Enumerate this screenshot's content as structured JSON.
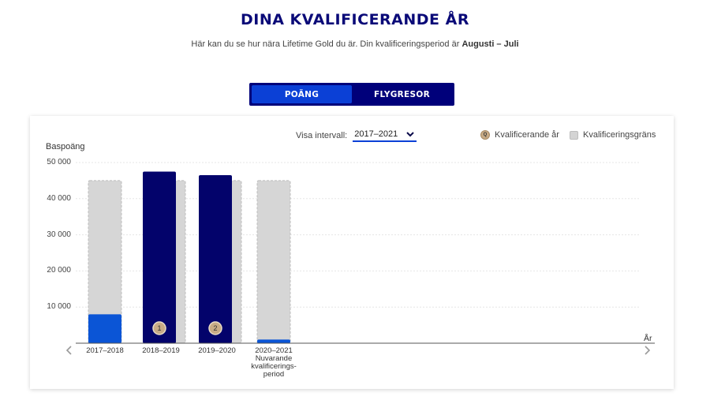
{
  "header": {
    "title": "DINA KVALIFICERANDE ÅR",
    "subtitle_prefix": "Här kan du se hur nära Lifetime Gold du är. Din kvalificeringsperiod är ",
    "subtitle_period": "Augusti – Juli"
  },
  "toggle": {
    "tabs": [
      {
        "label": "POÄNG",
        "active": true
      },
      {
        "label": "FLYGRESOR",
        "active": false
      }
    ]
  },
  "controls": {
    "interval_label": "Visa intervall:",
    "interval_value": "2017–2021"
  },
  "legend": {
    "qualifying_marker": "Q",
    "qualifying_label": "Kvalificerande år",
    "limit_label": "Kvalificeringsgräns"
  },
  "colors": {
    "points_current": "#0b55d6",
    "points_qualified": "#03036b",
    "limit": "#d6d6d6",
    "marker": "#c8ab86"
  },
  "chart_data": {
    "type": "bar",
    "ylabel": "Baspoäng",
    "xlabel": "År",
    "ylim": [
      0,
      50000
    ],
    "yticks": [
      "10 000",
      "20 000",
      "30 000",
      "40 000",
      "50 000"
    ],
    "ytick_values": [
      10000,
      20000,
      30000,
      40000,
      50000
    ],
    "categories": [
      {
        "label": "2017–2018",
        "sublabel": ""
      },
      {
        "label": "2018–2019",
        "sublabel": ""
      },
      {
        "label": "2019–2020",
        "sublabel": ""
      },
      {
        "label": "2020–2021",
        "sublabel": "Nuvarande kvalificerings-period"
      }
    ],
    "series": [
      {
        "name": "Kvalificeringsgräns",
        "values": [
          45000,
          45000,
          45000,
          45000
        ]
      },
      {
        "name": "Baspoäng",
        "values": [
          8000,
          47500,
          46500,
          1000
        ]
      }
    ],
    "qualifying_markers": [
      "",
      "1",
      "2",
      ""
    ]
  }
}
